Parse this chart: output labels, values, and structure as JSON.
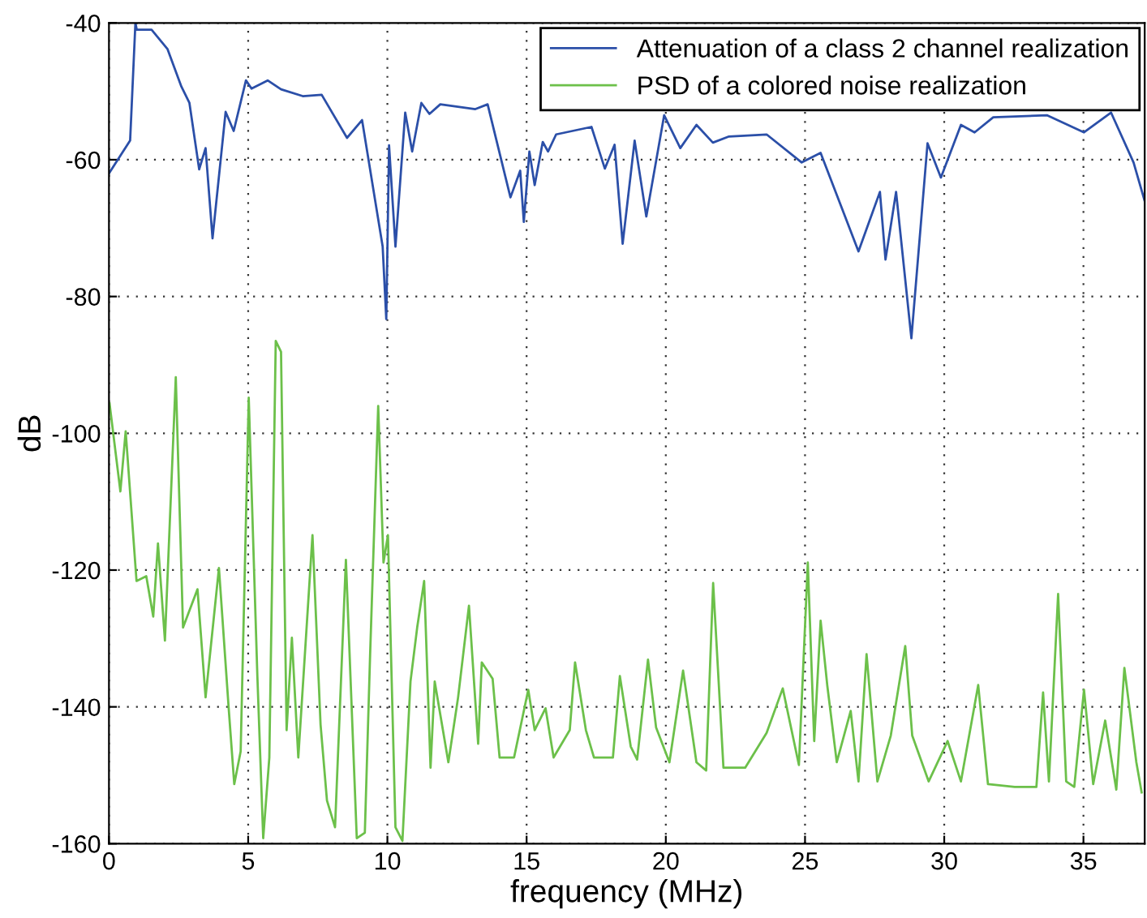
{
  "chart_data": {
    "type": "line",
    "xlabel": "frequency (MHz)",
    "ylabel": "dB",
    "xlim": [
      0,
      37.2
    ],
    "ylim": [
      -160,
      -40
    ],
    "xticks": [
      0,
      5,
      10,
      15,
      20,
      25,
      30,
      35
    ],
    "yticks": [
      -160,
      -140,
      -120,
      -100,
      -80,
      -60,
      -40
    ],
    "grid": true,
    "legend": "top right",
    "line_style": "solid",
    "marker": "none",
    "series": [
      {
        "name": "Attenuation of a class 2 channel realization",
        "color": "#2b4fa8",
        "x": [
          0,
          0.76,
          0.95,
          1.0,
          1.53,
          2.1,
          2.6,
          2.89,
          3.24,
          3.47,
          3.72,
          4.19,
          4.48,
          4.92,
          5.12,
          5.7,
          6.18,
          6.96,
          7.64,
          8.55,
          9.09,
          9.83,
          9.96,
          10.06,
          10.29,
          10.64,
          10.89,
          11.22,
          11.51,
          11.9,
          13.16,
          13.6,
          14.42,
          14.77,
          14.9,
          15.1,
          15.29,
          15.58,
          15.77,
          16.06,
          17.33,
          17.81,
          18.16,
          18.45,
          18.88,
          19.3,
          19.94,
          20.52,
          21.1,
          21.69,
          22.27,
          23.62,
          24.88,
          25.56,
          26.92,
          27.69,
          27.89,
          28.27,
          28.82,
          29.4,
          29.88,
          30.6,
          31.09,
          31.76,
          33.7,
          35.02,
          35.99,
          36.8,
          37.19
        ],
        "values": [
          -62.0,
          -57.2,
          -40.0,
          -41.0,
          -41.0,
          -43.8,
          -49.3,
          -51.7,
          -61.4,
          -58.3,
          -71.5,
          -53.0,
          -55.8,
          -48.4,
          -49.6,
          -48.4,
          -49.7,
          -50.7,
          -50.5,
          -56.8,
          -54.2,
          -72.7,
          -83.3,
          -57.9,
          -72.7,
          -53.1,
          -58.8,
          -51.7,
          -53.3,
          -51.9,
          -52.6,
          -51.9,
          -65.5,
          -61.6,
          -69.1,
          -58.8,
          -63.7,
          -57.4,
          -58.8,
          -56.3,
          -55.2,
          -61.3,
          -57.8,
          -72.3,
          -57.2,
          -68.3,
          -53.5,
          -58.3,
          -54.9,
          -57.5,
          -56.6,
          -56.3,
          -60.4,
          -59.0,
          -73.4,
          -64.7,
          -74.6,
          -64.7,
          -86.1,
          -57.6,
          -62.6,
          -54.9,
          -56.0,
          -53.8,
          -53.5,
          -56.0,
          -53.1,
          -60.4,
          -65.9
        ]
      },
      {
        "name": "PSD of a colored noise realization",
        "color": "#6cc04a",
        "x": [
          0.02,
          0.41,
          0.6,
          0.99,
          1.34,
          1.59,
          1.76,
          2.01,
          2.4,
          2.66,
          3.18,
          3.47,
          3.95,
          4.3,
          4.5,
          4.73,
          5.02,
          5.33,
          5.54,
          5.76,
          5.99,
          6.18,
          6.38,
          6.57,
          6.8,
          7.31,
          7.6,
          7.83,
          8.12,
          8.51,
          8.9,
          9.19,
          9.38,
          9.67,
          9.86,
          10.02,
          10.29,
          10.54,
          10.83,
          11.07,
          11.32,
          11.55,
          11.7,
          12.19,
          12.54,
          12.93,
          13.26,
          13.39,
          13.78,
          14.03,
          14.55,
          15.06,
          15.29,
          15.68,
          15.97,
          16.55,
          16.74,
          17.13,
          17.42,
          18.1,
          18.35,
          18.74,
          18.97,
          19.36,
          19.65,
          20.13,
          20.62,
          21.1,
          21.45,
          21.7,
          22.07,
          22.85,
          23.62,
          24.2,
          24.78,
          25.1,
          25.33,
          25.56,
          25.8,
          26.14,
          26.64,
          26.92,
          27.21,
          27.6,
          28.08,
          28.6,
          28.85,
          29.44,
          30.12,
          30.6,
          31.22,
          31.57,
          32.53,
          33.31,
          33.55,
          33.76,
          34.09,
          34.38,
          34.67,
          35.02,
          35.35,
          35.78,
          36.18,
          36.47,
          36.9,
          37.09
        ],
        "values": [
          -95.6,
          -108.5,
          -99.7,
          -121.6,
          -120.9,
          -126.8,
          -116.1,
          -130.3,
          -91.8,
          -128.4,
          -122.8,
          -138.6,
          -119.7,
          -140.2,
          -151.3,
          -146.5,
          -94.8,
          -135.5,
          -159.2,
          -147.4,
          -86.5,
          -88.1,
          -143.4,
          -129.9,
          -147.4,
          -114.9,
          -142.6,
          -153.7,
          -157.6,
          -118.5,
          -159.2,
          -158.4,
          -132.3,
          -96.0,
          -118.9,
          -114.9,
          -157.6,
          -159.6,
          -136.3,
          -128.4,
          -121.6,
          -148.9,
          -136.3,
          -148.1,
          -138.6,
          -125.2,
          -145.4,
          -133.5,
          -135.9,
          -147.4,
          -147.4,
          -137.5,
          -143.4,
          -140.2,
          -147.4,
          -143.4,
          -133.5,
          -143.4,
          -147.4,
          -147.4,
          -135.5,
          -145.8,
          -147.7,
          -133.1,
          -143.0,
          -148.1,
          -134.7,
          -148.1,
          -149.3,
          -121.9,
          -148.9,
          -148.9,
          -143.8,
          -137.3,
          -148.5,
          -118.9,
          -145.0,
          -127.4,
          -136.9,
          -148.1,
          -140.6,
          -150.9,
          -132.3,
          -150.9,
          -144.2,
          -131.1,
          -144.2,
          -150.9,
          -145.0,
          -150.9,
          -136.8,
          -151.3,
          -151.7,
          -151.7,
          -137.9,
          -150.9,
          -123.5,
          -150.9,
          -151.7,
          -137.5,
          -151.3,
          -142.0,
          -152.1,
          -134.3,
          -148.1,
          -152.5
        ]
      }
    ]
  }
}
